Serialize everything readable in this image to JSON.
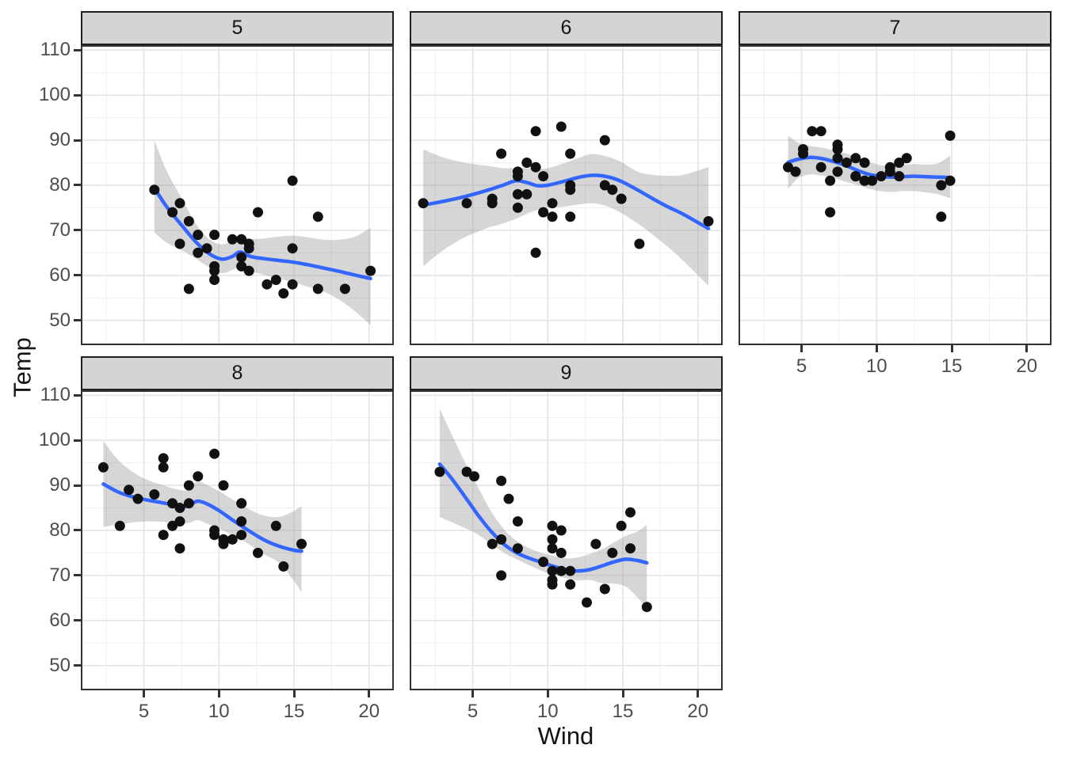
{
  "chart_data": {
    "type": "scatter",
    "title": "",
    "xlabel": "Wind",
    "ylabel": "Temp",
    "facet_values": [
      "5",
      "6",
      "7",
      "8",
      "9"
    ],
    "x_ticks": [
      5,
      10,
      15,
      20
    ],
    "y_ticks": [
      110,
      100,
      90,
      80,
      70,
      60,
      50
    ],
    "x_minor_ticks": [
      2.5,
      7.5,
      12.5,
      17.5
    ],
    "y_minor_ticks": [
      105,
      95,
      85,
      75,
      65,
      55,
      45
    ],
    "xlim": [
      0.8,
      21.65
    ],
    "ylim": [
      44.5,
      111.1
    ],
    "grid": true,
    "legend": "none",
    "smooth_method": "loess",
    "facets": [
      {
        "label": "5",
        "points": [
          [
            7.4,
            67
          ],
          [
            8,
            72
          ],
          [
            12.6,
            74
          ],
          [
            11.5,
            62
          ],
          [
            14.3,
            56
          ],
          [
            14.9,
            66
          ],
          [
            8.6,
            65
          ],
          [
            13.8,
            59
          ],
          [
            20.1,
            61
          ],
          [
            8.6,
            69
          ],
          [
            6.9,
            74
          ],
          [
            9.7,
            69
          ],
          [
            9.2,
            66
          ],
          [
            10.9,
            68
          ],
          [
            13.2,
            58
          ],
          [
            11.5,
            64
          ],
          [
            12,
            66
          ],
          [
            18.4,
            57
          ],
          [
            11.5,
            68
          ],
          [
            9.7,
            62
          ],
          [
            9.7,
            59
          ],
          [
            16.6,
            73
          ],
          [
            9.7,
            61
          ],
          [
            12,
            61
          ],
          [
            16.6,
            57
          ],
          [
            14.9,
            58
          ],
          [
            8,
            57
          ],
          [
            12,
            67
          ],
          [
            14.9,
            81
          ],
          [
            5.7,
            79
          ],
          [
            7.4,
            76
          ]
        ],
        "smooth": {
          "x": [
            5.7,
            6.5,
            7.5,
            8.5,
            9.4,
            10.2,
            10.9,
            11.4,
            12.1,
            13.0,
            14.0,
            15.0,
            16.0,
            17.0,
            18.0,
            19.0,
            20.1
          ],
          "y": [
            79.4,
            75.3,
            71.2,
            67.3,
            64.7,
            63.6,
            64.2,
            65.2,
            64.2,
            63.7,
            63.3,
            62.9,
            62.3,
            61.6,
            60.9,
            60.1,
            59.3
          ],
          "lower": [
            69.5,
            67.3,
            65.6,
            63.6,
            61.7,
            60.5,
            61.2,
            61.9,
            61.0,
            60.1,
            59.3,
            58.4,
            57.4,
            56.3,
            54.6,
            52.2,
            49.0
          ],
          "upper": [
            90.0,
            83.3,
            77.2,
            71.3,
            67.9,
            66.9,
            67.7,
            69.0,
            68.1,
            68.2,
            68.6,
            68.8,
            68.4,
            67.9,
            67.9,
            68.5,
            70.5
          ]
        }
      },
      {
        "label": "6",
        "points": [
          [
            8.6,
            78
          ],
          [
            9.7,
            74
          ],
          [
            16.1,
            67
          ],
          [
            9.2,
            84
          ],
          [
            8.6,
            85
          ],
          [
            14.3,
            79
          ],
          [
            9.7,
            82
          ],
          [
            6.9,
            87
          ],
          [
            13.8,
            90
          ],
          [
            11.5,
            87
          ],
          [
            10.9,
            93
          ],
          [
            9.2,
            92
          ],
          [
            8,
            82
          ],
          [
            13.8,
            80
          ],
          [
            11.5,
            79
          ],
          [
            14.9,
            77
          ],
          [
            20.7,
            72
          ],
          [
            9.2,
            65
          ],
          [
            11.5,
            73
          ],
          [
            10.3,
            76
          ],
          [
            6.3,
            77
          ],
          [
            1.7,
            76
          ],
          [
            4.6,
            76
          ],
          [
            6.3,
            76
          ],
          [
            8,
            75
          ],
          [
            8,
            78
          ],
          [
            10.3,
            73
          ],
          [
            11.5,
            80
          ],
          [
            14.9,
            77
          ],
          [
            8,
            83
          ]
        ],
        "smooth": {
          "x": [
            1.7,
            3.0,
            4.5,
            6.0,
            7.0,
            7.9,
            8.7,
            9.3,
            10.0,
            11.0,
            12.0,
            12.9,
            13.8,
            14.8,
            16.0,
            17.0,
            18.0,
            19.0,
            20.7
          ],
          "y": [
            75.6,
            76.4,
            77.5,
            78.9,
            80.0,
            81.0,
            80.5,
            79.9,
            80.0,
            80.8,
            81.7,
            82.2,
            82.0,
            81.0,
            78.9,
            77.0,
            75.2,
            73.6,
            70.4
          ],
          "lower": [
            62.0,
            65.5,
            68.5,
            70.5,
            71.5,
            72.6,
            73.8,
            74.5,
            75.0,
            75.2,
            75.7,
            76.0,
            75.5,
            74.0,
            71.5,
            69.0,
            66.3,
            63.3,
            57.7
          ],
          "upper": [
            88.0,
            86.2,
            85.0,
            84.3,
            83.8,
            83.8,
            83.8,
            83.6,
            83.8,
            84.8,
            86.0,
            86.9,
            86.5,
            85.3,
            83.0,
            82.3,
            82.1,
            82.3,
            84.0
          ]
        }
      },
      {
        "label": "7",
        "points": [
          [
            4.1,
            84
          ],
          [
            9.2,
            85
          ],
          [
            9.2,
            81
          ],
          [
            10.9,
            84
          ],
          [
            4.6,
            83
          ],
          [
            10.9,
            83
          ],
          [
            5.1,
            88
          ],
          [
            6.3,
            92
          ],
          [
            5.7,
            92
          ],
          [
            7.4,
            89
          ],
          [
            8.6,
            82
          ],
          [
            14.3,
            73
          ],
          [
            14.9,
            81
          ],
          [
            14.9,
            91
          ],
          [
            14.3,
            80
          ],
          [
            6.9,
            81
          ],
          [
            10.3,
            82
          ],
          [
            6.3,
            84
          ],
          [
            5.1,
            87
          ],
          [
            11.5,
            85
          ],
          [
            6.9,
            74
          ],
          [
            9.7,
            81
          ],
          [
            11.5,
            82
          ],
          [
            8.6,
            86
          ],
          [
            8,
            85
          ],
          [
            8.6,
            82
          ],
          [
            12,
            86
          ],
          [
            7.4,
            88
          ],
          [
            7.4,
            86
          ],
          [
            7.4,
            83
          ],
          [
            9.2,
            81
          ]
        ],
        "smooth": {
          "x": [
            4.1,
            4.8,
            5.6,
            6.4,
            7.2,
            8.0,
            8.8,
            9.5,
            10.2,
            11.0,
            11.7,
            12.5,
            13.3,
            14.1,
            14.9
          ],
          "y": [
            85.1,
            85.8,
            86.2,
            85.9,
            85.2,
            84.3,
            83.2,
            82.4,
            82.0,
            81.8,
            81.9,
            82.0,
            81.9,
            81.8,
            81.7
          ],
          "lower": [
            79.2,
            81.6,
            82.4,
            82.1,
            81.5,
            80.7,
            80.0,
            79.2,
            78.7,
            78.5,
            78.7,
            78.7,
            78.4,
            78.0,
            77.1
          ],
          "upper": [
            91.0,
            89.4,
            88.7,
            88.3,
            87.7,
            87.0,
            86.2,
            85.2,
            84.5,
            84.2,
            84.5,
            84.7,
            84.6,
            84.9,
            86.6
          ]
        }
      },
      {
        "label": "8",
        "points": [
          [
            6.9,
            81
          ],
          [
            13.8,
            81
          ],
          [
            7.4,
            82
          ],
          [
            6.9,
            86
          ],
          [
            7.4,
            85
          ],
          [
            4.6,
            87
          ],
          [
            4,
            89
          ],
          [
            10.3,
            90
          ],
          [
            8,
            90
          ],
          [
            8.6,
            92
          ],
          [
            11.5,
            86
          ],
          [
            11.5,
            86
          ],
          [
            11.5,
            82
          ],
          [
            9.7,
            80
          ],
          [
            11.5,
            79
          ],
          [
            10.3,
            77
          ],
          [
            6.3,
            79
          ],
          [
            7.4,
            76
          ],
          [
            10.9,
            78
          ],
          [
            10.3,
            78
          ],
          [
            15.5,
            77
          ],
          [
            14.3,
            72
          ],
          [
            12.6,
            75
          ],
          [
            9.7,
            79
          ],
          [
            3.4,
            81
          ],
          [
            8,
            86
          ],
          [
            5.7,
            88
          ],
          [
            9.7,
            97
          ],
          [
            2.3,
            94
          ],
          [
            6.3,
            96
          ],
          [
            6.3,
            94
          ]
        ],
        "smooth": {
          "x": [
            2.3,
            3.3,
            4.3,
            5.3,
            6.3,
            7.2,
            7.8,
            8.2,
            8.6,
            9.2,
            10.0,
            11.0,
            12.0,
            13.0,
            14.0,
            15.0,
            15.5
          ],
          "y": [
            90.3,
            88.5,
            87.4,
            86.7,
            86.1,
            85.6,
            85.3,
            85.9,
            86.5,
            85.9,
            84.4,
            82.1,
            79.9,
            77.9,
            76.5,
            75.6,
            75.4
          ],
          "lower": [
            80.8,
            81.3,
            81.8,
            82.0,
            81.9,
            81.7,
            81.6,
            81.9,
            82.3,
            81.5,
            80.4,
            78.8,
            76.9,
            74.7,
            72.8,
            68.8,
            66.2
          ],
          "upper": [
            99.8,
            95.6,
            92.9,
            91.1,
            90.0,
            89.1,
            88.9,
            89.9,
            90.9,
            90.1,
            88.7,
            86.7,
            84.7,
            83.3,
            83.0,
            84.3,
            85.4
          ]
        }
      },
      {
        "label": "9",
        "points": [
          [
            6.9,
            91
          ],
          [
            5.1,
            92
          ],
          [
            2.8,
            93
          ],
          [
            4.6,
            93
          ],
          [
            7.4,
            87
          ],
          [
            15.5,
            84
          ],
          [
            10.9,
            80
          ],
          [
            10.3,
            78
          ],
          [
            10.9,
            75
          ],
          [
            9.7,
            73
          ],
          [
            14.9,
            81
          ],
          [
            15.5,
            76
          ],
          [
            6.3,
            77
          ],
          [
            10.9,
            71
          ],
          [
            11.5,
            71
          ],
          [
            6.9,
            78
          ],
          [
            13.8,
            67
          ],
          [
            10.3,
            76
          ],
          [
            10.3,
            68
          ],
          [
            8,
            82
          ],
          [
            12.6,
            64
          ],
          [
            10.3,
            71
          ],
          [
            10.3,
            81
          ],
          [
            10.3,
            69
          ],
          [
            16.6,
            63
          ],
          [
            6.9,
            70
          ],
          [
            13.2,
            77
          ],
          [
            14.3,
            75
          ],
          [
            8,
            76
          ],
          [
            11.5,
            68
          ]
        ],
        "smooth": {
          "x": [
            2.8,
            3.6,
            4.5,
            5.4,
            6.3,
            7.2,
            8.0,
            8.8,
            9.6,
            10.4,
            11.2,
            12.0,
            12.8,
            13.6,
            14.4,
            15.2,
            16.0,
            16.6
          ],
          "y": [
            94.7,
            91.5,
            87.4,
            83.2,
            79.5,
            76.6,
            74.9,
            73.8,
            72.9,
            72.0,
            71.3,
            71.0,
            71.3,
            72.1,
            73.0,
            73.6,
            73.3,
            72.8
          ],
          "lower": [
            83.0,
            81.8,
            80.5,
            79.0,
            76.8,
            74.8,
            73.5,
            72.2,
            71.0,
            70.1,
            69.4,
            68.9,
            69.0,
            68.3,
            68.2,
            67.5,
            65.0,
            62.7
          ],
          "upper": [
            107.0,
            101.3,
            95.0,
            89.3,
            83.8,
            79.8,
            77.5,
            76.0,
            75.0,
            74.3,
            73.8,
            74.0,
            74.8,
            75.8,
            77.3,
            78.8,
            79.8,
            81.3
          ]
        }
      }
    ]
  },
  "style": {
    "point_color": "#111111",
    "smooth_line_color": "#3366FF",
    "ribbon_color": "rgba(153,153,153,0.40)",
    "strip_fill": "#d4d4d4",
    "strip_border": "#1f1f1f",
    "panel_border": "#333333",
    "grid_major_color": "#e4e4e4",
    "grid_minor_color": "#f0f0f0",
    "tick_mark_color": "#333333",
    "tick_label_color": "#4d4d4d",
    "axis_title_color": "#141414",
    "background": "#ffffff"
  }
}
